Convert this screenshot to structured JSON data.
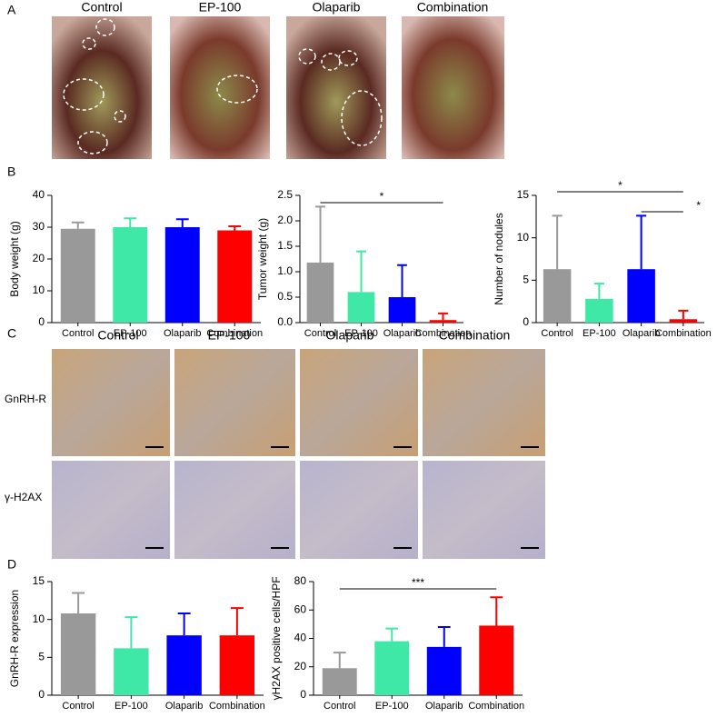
{
  "panel_labels": [
    "A",
    "B",
    "C",
    "D"
  ],
  "photo_titles": [
    "Control",
    "EP-100",
    "Olaparib",
    "Combination"
  ],
  "ihc_columns": [
    "Control",
    "EP-100",
    "Olaparib",
    "Combination"
  ],
  "ihc_rows": [
    "GnRH-R",
    "γ-H2AX"
  ],
  "chart_data": [
    {
      "type": "bar",
      "ylabel": "Body weight (g)",
      "categories": [
        "Control",
        "EP-100",
        "Olaparib",
        "Combination"
      ],
      "values": [
        29.5,
        30,
        30,
        29
      ],
      "errors": [
        2,
        2.8,
        2.5,
        1.3
      ],
      "colors": [
        "#999999",
        "#40e8a8",
        "#0000ff",
        "#ff0000"
      ],
      "ylim": [
        0,
        40
      ],
      "yticks": [
        0,
        10,
        20,
        30,
        40
      ],
      "annotations": []
    },
    {
      "type": "bar",
      "ylabel": "Tumor weight (g)",
      "categories": [
        "Control",
        "EP-100",
        "Olaparib",
        "Combination"
      ],
      "values": [
        1.18,
        0.6,
        0.5,
        0.05
      ],
      "errors": [
        1.1,
        0.8,
        0.63,
        0.13
      ],
      "colors": [
        "#999999",
        "#40e8a8",
        "#0000ff",
        "#ff0000"
      ],
      "ylim": [
        0,
        2.5
      ],
      "yticks": [
        {
          "value": 0,
          "label": "0.0"
        },
        0.5,
        {
          "value": 1,
          "label": "1.0"
        },
        1.5,
        {
          "value": 2,
          "label": "2.0"
        },
        2.5
      ],
      "annotations": [
        {
          "label": "*",
          "categories": [
            "Control",
            "Combination"
          ]
        }
      ]
    },
    {
      "type": "bar",
      "ylabel": "Number of nodules",
      "categories": [
        "Control",
        "EP-100",
        "Olaparib",
        "Combination"
      ],
      "values": [
        6.3,
        2.8,
        6.3,
        0.4
      ],
      "errors": [
        6.3,
        1.8,
        6.3,
        1.0
      ],
      "colors": [
        "#999999",
        "#40e8a8",
        "#0000ff",
        "#ff0000"
      ],
      "ylim": [
        0,
        15
      ],
      "yticks": [
        0,
        5,
        10,
        15
      ],
      "annotations": [
        {
          "label": "*",
          "categories": [
            "Control",
            "Combination"
          ]
        },
        {
          "label": "*",
          "categories": [
            "Olaparib",
            "Combination"
          ]
        }
      ]
    },
    {
      "type": "bar",
      "ylabel": "GnRH-R expression",
      "categories": [
        "Control",
        "EP-100",
        "Olaparib",
        "Combination"
      ],
      "values": [
        10.8,
        6.2,
        7.9,
        7.9
      ],
      "errors": [
        2.7,
        4.1,
        2.9,
        3.6
      ],
      "colors": [
        "#999999",
        "#40e8a8",
        "#0000ff",
        "#ff0000"
      ],
      "ylim": [
        0,
        15
      ],
      "yticks": [
        0,
        5,
        10,
        15
      ],
      "annotations": []
    },
    {
      "type": "bar",
      "ylabel": "γH2AX positive cells/HPF",
      "categories": [
        "Control",
        "EP-100",
        "Olaparib",
        "Combination"
      ],
      "values": [
        19,
        38,
        34,
        49
      ],
      "errors": [
        11,
        9,
        14,
        20
      ],
      "colors": [
        "#999999",
        "#40e8a8",
        "#0000ff",
        "#ff0000"
      ],
      "ylim": [
        0,
        80
      ],
      "yticks": [
        0,
        20,
        40,
        60,
        80
      ],
      "annotations": [
        {
          "label": "***",
          "categories": [
            "Control",
            "Combination"
          ]
        }
      ]
    }
  ]
}
